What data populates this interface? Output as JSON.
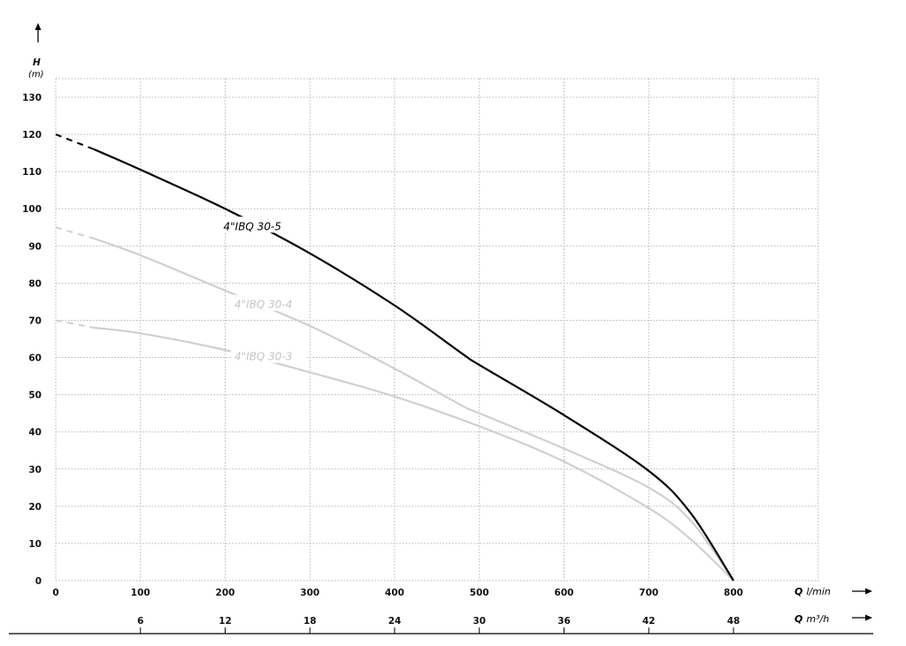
{
  "chart_data": {
    "type": "line",
    "ylabel": "H",
    "yunit": "(m)",
    "xlabel": "Q",
    "xunit": "l/min",
    "x2label": "Q",
    "x2unit": "m³/h",
    "xlim": [
      0,
      900
    ],
    "ylim": [
      0,
      135
    ],
    "xticks": [
      0,
      100,
      200,
      300,
      400,
      500,
      600,
      700,
      800
    ],
    "x2ticks": [
      6,
      12,
      18,
      24,
      30,
      36,
      42,
      48
    ],
    "yticks": [
      0,
      10,
      20,
      30,
      40,
      50,
      60,
      70,
      80,
      90,
      100,
      110,
      120,
      130
    ],
    "grid": true,
    "series": [
      {
        "name": "4\"IBQ 30-5",
        "color": "#000000",
        "label_at": [
          200,
          95
        ],
        "dashed_until": 45,
        "points": [
          [
            0,
            120
          ],
          [
            45,
            116
          ],
          [
            100,
            110.5
          ],
          [
            200,
            100
          ],
          [
            300,
            88
          ],
          [
            400,
            74
          ],
          [
            480,
            61
          ],
          [
            500,
            58
          ],
          [
            600,
            44.5
          ],
          [
            700,
            29.5
          ],
          [
            750,
            18
          ],
          [
            800,
            0
          ]
        ]
      },
      {
        "name": "4\"IBQ 30-4",
        "color": "#d0d0d0",
        "label_at": [
          213,
          74
        ],
        "dashed_until": 45,
        "points": [
          [
            0,
            95
          ],
          [
            45,
            92
          ],
          [
            100,
            87.5
          ],
          [
            200,
            78
          ],
          [
            300,
            68.5
          ],
          [
            400,
            57
          ],
          [
            480,
            47
          ],
          [
            500,
            45
          ],
          [
            600,
            35.5
          ],
          [
            700,
            25
          ],
          [
            750,
            16
          ],
          [
            800,
            0
          ]
        ]
      },
      {
        "name": "4\"IBQ 30-3",
        "color": "#d0d0d0",
        "label_at": [
          213,
          60
        ],
        "dashed_until": 45,
        "points": [
          [
            0,
            70
          ],
          [
            45,
            68
          ],
          [
            100,
            66.5
          ],
          [
            200,
            62
          ],
          [
            300,
            56
          ],
          [
            400,
            49.5
          ],
          [
            500,
            41.5
          ],
          [
            600,
            32
          ],
          [
            700,
            19.5
          ],
          [
            750,
            11
          ],
          [
            800,
            0
          ]
        ]
      }
    ]
  }
}
